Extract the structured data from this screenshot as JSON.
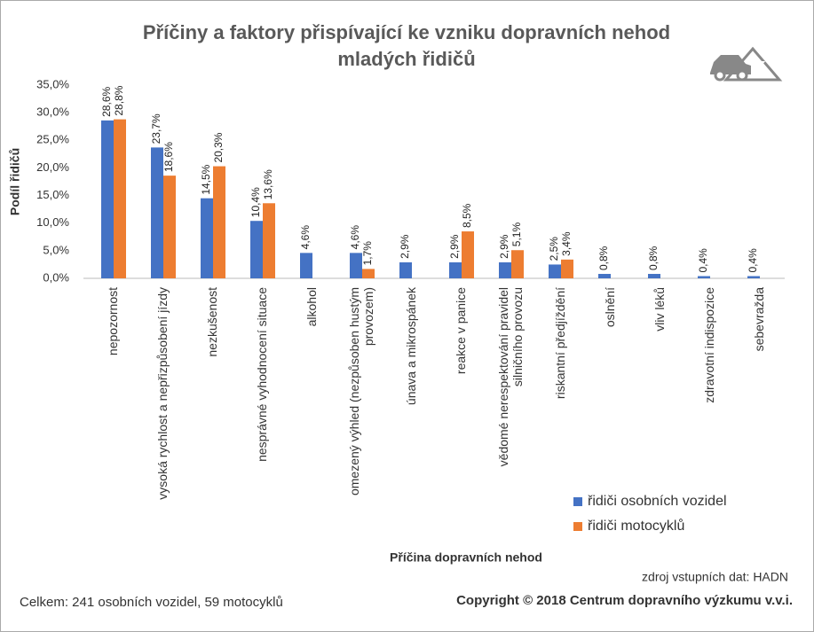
{
  "chart_data": {
    "type": "bar",
    "title": "Příčiny a faktory přispívající ke vzniku dopravních nehod mladých řidičů",
    "y_label": "Podíl řidičů",
    "x_label": "Příčina dopravních nehod",
    "categories": [
      "nepozornost",
      "vysoká rychlost a nepřizpůsobení jízdy",
      "nezkušenost",
      "nesprávné vyhodnocení situace",
      "alkohol",
      "omezený výhled (nezpůsoben hustým provozem)",
      "únava a mikrospánek",
      "reakce v panice",
      "vědomé nerespektování pravidel silničního provozu",
      "riskantní předjíždění",
      "oslnění",
      "vliv léků",
      "zdravotní indispozice",
      "sebevražda"
    ],
    "series": [
      {
        "name": "řidiči osobních vozidel",
        "color": "#4472c4",
        "values": [
          28.6,
          23.7,
          14.5,
          10.4,
          4.6,
          4.6,
          2.9,
          2.9,
          2.9,
          2.5,
          0.8,
          0.8,
          0.4,
          0.4
        ],
        "value_labels": [
          "28,6%",
          "23,7%",
          "14,5%",
          "10,4%",
          "4,6%",
          "4,6%",
          "2,9%",
          "2,9%",
          "2,9%",
          "2,5%",
          "0,8%",
          "0,8%",
          "0,4%",
          "0,4%"
        ]
      },
      {
        "name": "řidiči motocyklů",
        "color": "#ed7d31",
        "values": [
          28.8,
          18.6,
          20.3,
          13.6,
          null,
          1.7,
          null,
          8.5,
          5.1,
          3.4,
          null,
          null,
          null,
          null
        ],
        "value_labels": [
          "28,8%",
          "18,6%",
          "20,3%",
          "13,6%",
          null,
          "1,7%",
          null,
          "8,5%",
          "5,1%",
          "3,4%",
          null,
          null,
          null,
          null
        ]
      }
    ],
    "ylim": [
      0,
      35
    ],
    "yticks": [
      {
        "value": 0,
        "label": "0,0%"
      },
      {
        "value": 5,
        "label": "5,0%"
      },
      {
        "value": 10,
        "label": "10,0%"
      },
      {
        "value": 15,
        "label": "15,0%"
      },
      {
        "value": 20,
        "label": "20,0%"
      },
      {
        "value": 25,
        "label": "25,0%"
      },
      {
        "value": 30,
        "label": "30,0%"
      },
      {
        "value": 35,
        "label": "35,0%"
      }
    ],
    "grid": false,
    "legend": "lower right",
    "source": "zdroj vstupních dat: HADN",
    "copyright": "Copyright © 2018 Centrum dopravního výzkumu v.v.i.",
    "total": "Celkem: 241 osobních vozidel, 59 motocyklů"
  }
}
